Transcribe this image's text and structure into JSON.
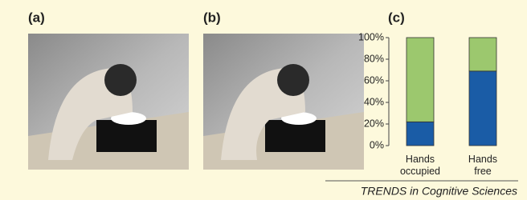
{
  "panels": {
    "a": "(a)",
    "b": "(b)"
  },
  "footer": "TRENDS in Cognitive Sciences",
  "chart_data": {
    "type": "stacked_bar",
    "label": "(c)",
    "categories": [
      "Hands occupied",
      "Hands free"
    ],
    "series": [
      {
        "color": "#1a5ca6",
        "values": [
          22,
          69
        ]
      },
      {
        "color": "#9cc86e",
        "values": [
          78,
          31
        ]
      }
    ],
    "ylim": [
      0,
      100
    ],
    "yticks": [
      {
        "value": 0,
        "label": "0%"
      },
      {
        "value": 20,
        "label": "20%"
      },
      {
        "value": 40,
        "label": "40%"
      },
      {
        "value": 60,
        "label": "60%"
      },
      {
        "value": 80,
        "label": "80%"
      },
      {
        "value": 100,
        "label": "100%"
      }
    ]
  }
}
